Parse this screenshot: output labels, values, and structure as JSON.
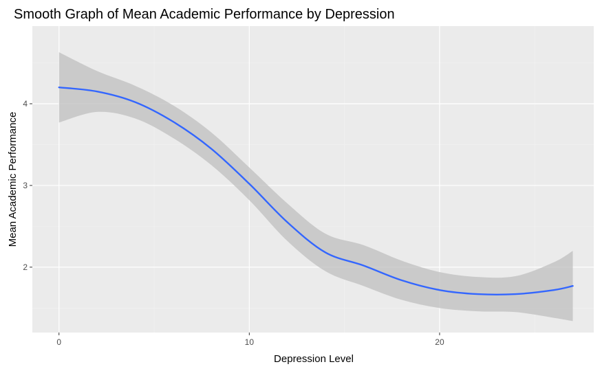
{
  "chart_data": {
    "type": "line",
    "title": "Smooth Graph of Mean Academic Performance by Depression",
    "xlabel": "Depression Level",
    "ylabel": "Mean Academic Performance",
    "xlim": [
      -1.4,
      28.1
    ],
    "ylim": [
      1.2,
      4.95
    ],
    "x_ticks": [
      0,
      10,
      20
    ],
    "x_minor_ticks": [
      5,
      15,
      25
    ],
    "y_ticks": [
      2,
      3,
      4
    ],
    "y_minor_ticks": [
      1.5,
      2.5,
      3.5,
      4.5
    ],
    "grid": true,
    "series": [
      {
        "x": [
          0,
          2,
          4,
          6,
          8,
          10,
          12,
          14,
          16,
          18,
          20,
          22,
          24,
          26,
          27
        ],
        "values": [
          4.2,
          4.15,
          4.02,
          3.78,
          3.45,
          3.02,
          2.55,
          2.18,
          2.02,
          1.84,
          1.72,
          1.67,
          1.67,
          1.72,
          1.77
        ],
        "lower": [
          3.77,
          3.9,
          3.82,
          3.58,
          3.25,
          2.82,
          2.32,
          1.95,
          1.77,
          1.6,
          1.5,
          1.46,
          1.45,
          1.38,
          1.34
        ],
        "upper": [
          4.63,
          4.4,
          4.22,
          3.98,
          3.65,
          3.22,
          2.78,
          2.41,
          2.27,
          2.08,
          1.94,
          1.88,
          1.89,
          2.06,
          2.2
        ]
      }
    ],
    "colors": {
      "panel_background": "#ebebeb",
      "grid_major": "#ffffff",
      "grid_minor": "#f2f2f2",
      "line": "#3366ff",
      "ribbon": "#bdbdbd",
      "tick_mark": "#333333",
      "tick_label": "#4d4d4d"
    }
  }
}
